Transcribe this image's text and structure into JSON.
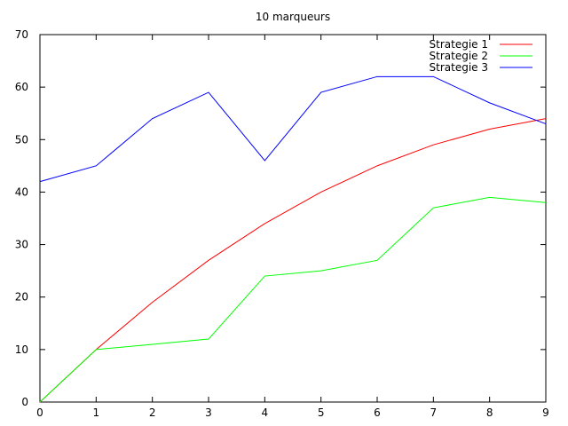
{
  "chart_data": {
    "type": "line",
    "title": "10 marqueurs",
    "xlabel": "",
    "ylabel": "",
    "xlim": [
      0,
      9
    ],
    "ylim": [
      0,
      70
    ],
    "x": [
      0,
      1,
      2,
      3,
      4,
      5,
      6,
      7,
      8,
      9
    ],
    "x_ticks": [
      "0",
      "1",
      "2",
      "3",
      "4",
      "5",
      "6",
      "7",
      "8",
      "9"
    ],
    "y_ticks": [
      "0",
      "10",
      "20",
      "30",
      "40",
      "50",
      "60",
      "70"
    ],
    "grid": false,
    "legend_position": "top-right",
    "series": [
      {
        "name": "Strategie 1",
        "color": "#ff0000",
        "values": [
          0,
          10,
          19,
          27,
          34,
          40,
          45,
          49,
          52,
          54
        ]
      },
      {
        "name": "Strategie 2",
        "color": "#00ff00",
        "values": [
          0,
          10,
          11,
          12,
          24,
          25,
          27,
          37,
          39,
          38
        ]
      },
      {
        "name": "Strategie 3",
        "color": "#0000ff",
        "values": [
          42,
          45,
          54,
          59,
          46,
          59,
          62,
          62,
          57,
          53
        ]
      }
    ]
  }
}
